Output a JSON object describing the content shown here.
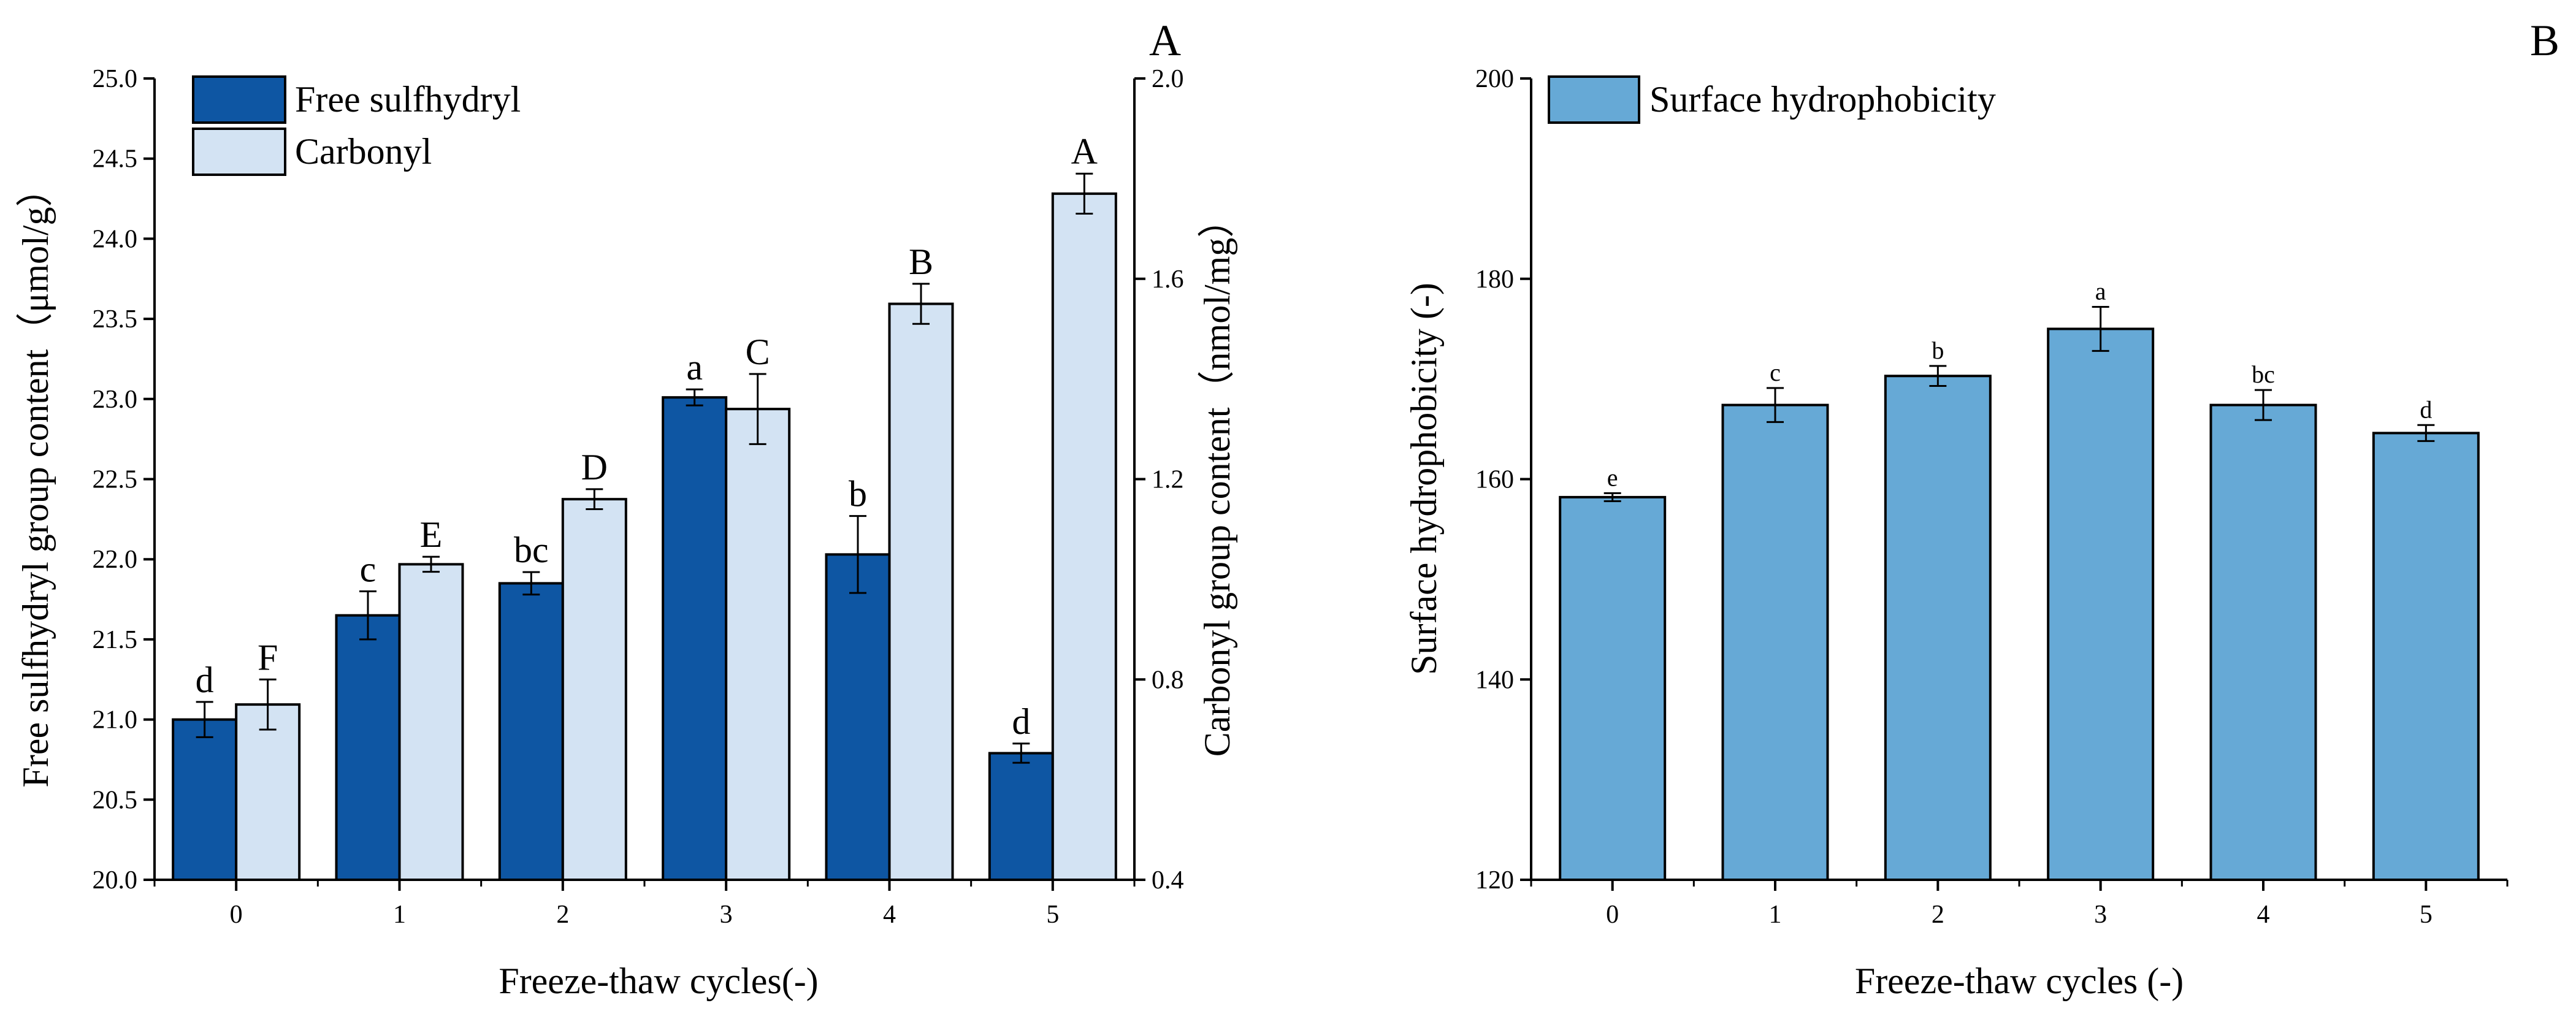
{
  "chart_data": [
    {
      "panel_label": "A",
      "type": "bar",
      "xlabel": "Freeze-thaw cycles(-)",
      "categories": [
        "0",
        "1",
        "2",
        "3",
        "4",
        "5"
      ],
      "left_axis": {
        "label": "Free sulfhydryl group content（μmol/g）",
        "ylim": [
          20.0,
          25.0
        ],
        "ticks": [
          "20.0",
          "20.5",
          "21.0",
          "21.5",
          "22.0",
          "22.5",
          "23.0",
          "23.5",
          "24.0",
          "24.5",
          "25.0"
        ]
      },
      "right_axis": {
        "label": "Carbonyl group content（nmol/mg）",
        "ylim": [
          0.4,
          2.0
        ],
        "ticks": [
          "0.4",
          "0.8",
          "1.2",
          "1.6",
          "2.0"
        ]
      },
      "series": [
        {
          "name": "Free sulfhydryl",
          "axis": "left",
          "color": "#0e56a3",
          "values": [
            21.0,
            21.65,
            21.85,
            23.01,
            22.03,
            20.79
          ],
          "errors": [
            0.11,
            0.15,
            0.07,
            0.05,
            0.24,
            0.06
          ],
          "letters": [
            "d",
            "c",
            "bc",
            "a",
            "b",
            "d"
          ]
        },
        {
          "name": "Carbonyl",
          "axis": "right",
          "color": "#d3e3f3",
          "values": [
            0.75,
            1.03,
            1.16,
            1.34,
            1.55,
            1.77
          ],
          "errors": [
            0.05,
            0.015,
            0.02,
            0.07,
            0.04,
            0.04
          ],
          "letters": [
            "F",
            "E",
            "D",
            "C",
            "B",
            "A"
          ]
        }
      ]
    },
    {
      "panel_label": "B",
      "type": "bar",
      "xlabel": "Freeze-thaw cycles (-)",
      "ylabel": "Surface hydrophobicity (-)",
      "categories": [
        "0",
        "1",
        "2",
        "3",
        "4",
        "5"
      ],
      "ylim": [
        120,
        200
      ],
      "ticks": [
        "120",
        "140",
        "160",
        "180",
        "200"
      ],
      "series": [
        {
          "name": "Surface hydrophobicity",
          "color": "#66a9d6",
          "values": [
            158.2,
            167.4,
            170.3,
            175.0,
            167.4,
            164.6
          ],
          "errors": [
            0.4,
            1.7,
            1.0,
            2.2,
            1.5,
            0.8
          ],
          "letters": [
            "e",
            "c",
            "b",
            "a",
            "bc",
            "d"
          ]
        }
      ]
    }
  ]
}
